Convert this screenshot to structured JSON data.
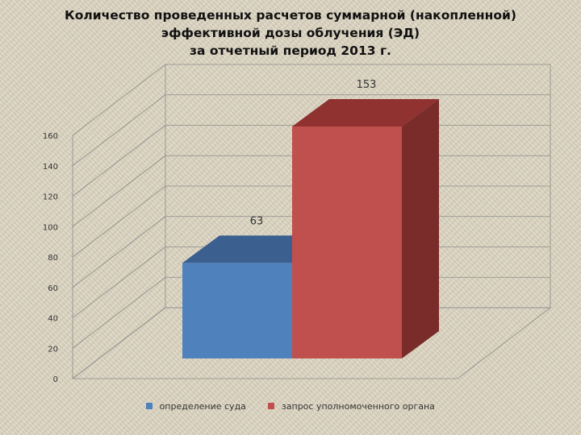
{
  "chart_data": {
    "type": "bar",
    "title_lines": [
      "Количество проведенных расчетов суммарной (накопленной)",
      "эффективной дозы облучения (ЭД)",
      "за отчетный период 2013 г."
    ],
    "series": [
      {
        "name": "определение суда",
        "value": 63,
        "color": "#4f81bd",
        "top_color": "#3b5f8f",
        "side_color": "#2f4c73"
      },
      {
        "name": "запрос уполномоченного органа",
        "value": 153,
        "color": "#c0504d",
        "top_color": "#8f3230",
        "side_color": "#7a2c2a"
      }
    ],
    "ylim": [
      0,
      160
    ],
    "yticks": [
      0,
      20,
      40,
      60,
      80,
      100,
      120,
      140,
      160
    ],
    "grid": true,
    "legend_position": "bottom",
    "view": "3d"
  }
}
